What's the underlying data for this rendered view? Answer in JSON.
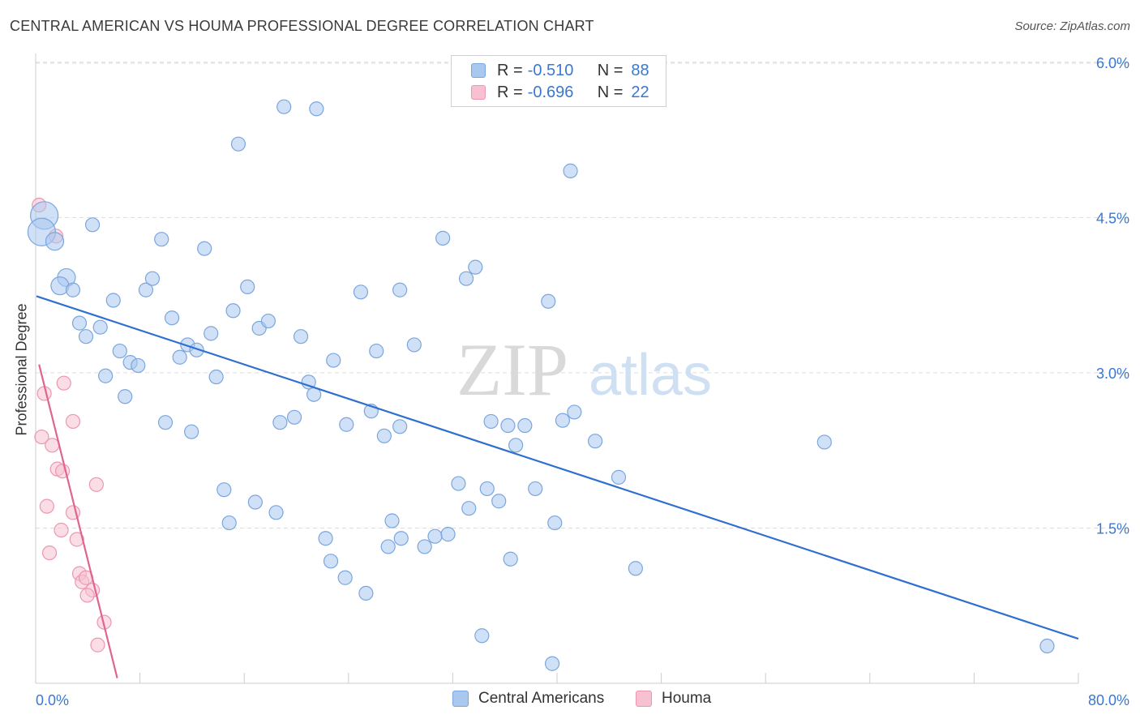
{
  "title": "CENTRAL AMERICAN VS HOUMA PROFESSIONAL DEGREE CORRELATION CHART",
  "source": "Source: ZipAtlas.com",
  "watermark": {
    "zip": "ZIP",
    "atlas": "atlas"
  },
  "legend": {
    "rows": [
      {
        "r_label": "R =",
        "r_value": "-0.510",
        "n_label": "N =",
        "n_value": "88"
      },
      {
        "r_label": "R =",
        "r_value": "-0.696",
        "n_label": "N =",
        "n_value": "22"
      }
    ]
  },
  "bottom_legend": [
    "Central Americans",
    "Houma"
  ],
  "colors": {
    "blue_fill": "#a9c8f0",
    "blue_stroke": "#7aa6de",
    "blue_line": "#2f6fcf",
    "pink_fill": "#f7c1d1",
    "pink_stroke": "#ec97b2",
    "pink_line": "#e0648f",
    "tick_label": "#3a78d0",
    "grid": "#dddddd"
  },
  "chart_data": {
    "type": "scatter",
    "title": "CENTRAL AMERICAN VS HOUMA PROFESSIONAL DEGREE CORRELATION CHART",
    "xlabel": "",
    "ylabel": "Professional Degree",
    "xlim": [
      0,
      80
    ],
    "ylim": [
      0,
      6.3
    ],
    "x_tick_labels": [
      {
        "value": 0,
        "label": "0.0%"
      },
      {
        "value": 80,
        "label": "80.0%"
      }
    ],
    "y_tick_labels": [
      {
        "value": 1.5,
        "label": "1.5%"
      },
      {
        "value": 3.0,
        "label": "3.0%"
      },
      {
        "value": 4.5,
        "label": "4.5%"
      },
      {
        "value": 6.0,
        "label": "6.0%"
      }
    ],
    "grid": true,
    "legend_position": "top-center",
    "series": [
      {
        "name": "Central Americans",
        "r": -0.51,
        "n": 88,
        "trend": {
          "x": [
            0,
            80
          ],
          "y": [
            3.74,
            0.43
          ]
        },
        "points": [
          {
            "x": 0.6,
            "y": 4.52,
            "s": 3
          },
          {
            "x": 0.4,
            "y": 4.36,
            "s": 3
          },
          {
            "x": 1.4,
            "y": 4.27,
            "s": 2
          },
          {
            "x": 2.3,
            "y": 3.92,
            "s": 2
          },
          {
            "x": 1.8,
            "y": 3.84,
            "s": 2
          },
          {
            "x": 2.8,
            "y": 3.8,
            "s": 1
          },
          {
            "x": 4.3,
            "y": 4.43,
            "s": 1
          },
          {
            "x": 3.3,
            "y": 3.48,
            "s": 1
          },
          {
            "x": 3.8,
            "y": 3.35,
            "s": 1
          },
          {
            "x": 4.9,
            "y": 3.44,
            "s": 1
          },
          {
            "x": 5.9,
            "y": 3.7,
            "s": 1
          },
          {
            "x": 6.4,
            "y": 3.21,
            "s": 1
          },
          {
            "x": 7.2,
            "y": 3.1,
            "s": 1
          },
          {
            "x": 7.8,
            "y": 3.07,
            "s": 1
          },
          {
            "x": 5.3,
            "y": 2.97,
            "s": 1
          },
          {
            "x": 6.8,
            "y": 2.77,
            "s": 1
          },
          {
            "x": 8.4,
            "y": 3.8,
            "s": 1
          },
          {
            "x": 8.9,
            "y": 3.91,
            "s": 1
          },
          {
            "x": 9.6,
            "y": 4.29,
            "s": 1
          },
          {
            "x": 10.4,
            "y": 3.53,
            "s": 1
          },
          {
            "x": 11.6,
            "y": 3.27,
            "s": 1
          },
          {
            "x": 11.0,
            "y": 3.15,
            "s": 1
          },
          {
            "x": 12.3,
            "y": 3.22,
            "s": 1
          },
          {
            "x": 12.9,
            "y": 4.2,
            "s": 1
          },
          {
            "x": 13.4,
            "y": 3.38,
            "s": 1
          },
          {
            "x": 13.8,
            "y": 2.96,
            "s": 1
          },
          {
            "x": 9.9,
            "y": 2.52,
            "s": 1
          },
          {
            "x": 11.9,
            "y": 2.43,
            "s": 1
          },
          {
            "x": 15.5,
            "y": 5.21,
            "s": 1
          },
          {
            "x": 15.1,
            "y": 3.6,
            "s": 1
          },
          {
            "x": 16.2,
            "y": 3.83,
            "s": 1
          },
          {
            "x": 17.1,
            "y": 3.43,
            "s": 1
          },
          {
            "x": 17.8,
            "y": 3.5,
            "s": 1
          },
          {
            "x": 19.0,
            "y": 5.57,
            "s": 1
          },
          {
            "x": 21.5,
            "y": 5.55,
            "s": 1
          },
          {
            "x": 20.3,
            "y": 3.35,
            "s": 1
          },
          {
            "x": 20.9,
            "y": 2.91,
            "s": 1
          },
          {
            "x": 21.3,
            "y": 2.79,
            "s": 1
          },
          {
            "x": 18.7,
            "y": 2.52,
            "s": 1
          },
          {
            "x": 19.8,
            "y": 2.57,
            "s": 1
          },
          {
            "x": 14.4,
            "y": 1.87,
            "s": 1
          },
          {
            "x": 14.8,
            "y": 1.55,
            "s": 1
          },
          {
            "x": 16.8,
            "y": 1.75,
            "s": 1
          },
          {
            "x": 18.4,
            "y": 1.65,
            "s": 1
          },
          {
            "x": 22.8,
            "y": 3.12,
            "s": 1
          },
          {
            "x": 24.9,
            "y": 3.78,
            "s": 1
          },
          {
            "x": 26.1,
            "y": 3.21,
            "s": 1
          },
          {
            "x": 27.9,
            "y": 3.8,
            "s": 1
          },
          {
            "x": 29.0,
            "y": 3.27,
            "s": 1
          },
          {
            "x": 23.8,
            "y": 2.5,
            "s": 1
          },
          {
            "x": 25.7,
            "y": 2.63,
            "s": 1
          },
          {
            "x": 26.7,
            "y": 2.39,
            "s": 1
          },
          {
            "x": 27.9,
            "y": 2.48,
            "s": 1
          },
          {
            "x": 31.2,
            "y": 4.3,
            "s": 1
          },
          {
            "x": 33.0,
            "y": 3.91,
            "s": 1
          },
          {
            "x": 33.7,
            "y": 4.02,
            "s": 1
          },
          {
            "x": 22.2,
            "y": 1.4,
            "s": 1
          },
          {
            "x": 22.6,
            "y": 1.18,
            "s": 1
          },
          {
            "x": 23.7,
            "y": 1.02,
            "s": 1
          },
          {
            "x": 25.3,
            "y": 0.87,
            "s": 1
          },
          {
            "x": 27.0,
            "y": 1.32,
            "s": 1
          },
          {
            "x": 27.3,
            "y": 1.57,
            "s": 1
          },
          {
            "x": 28.0,
            "y": 1.4,
            "s": 1
          },
          {
            "x": 29.8,
            "y": 1.32,
            "s": 1
          },
          {
            "x": 30.6,
            "y": 1.42,
            "s": 1
          },
          {
            "x": 31.6,
            "y": 1.44,
            "s": 1
          },
          {
            "x": 32.4,
            "y": 1.93,
            "s": 1
          },
          {
            "x": 34.9,
            "y": 2.53,
            "s": 1
          },
          {
            "x": 36.2,
            "y": 2.49,
            "s": 1
          },
          {
            "x": 36.8,
            "y": 2.3,
            "s": 1
          },
          {
            "x": 37.5,
            "y": 2.49,
            "s": 1
          },
          {
            "x": 33.2,
            "y": 1.69,
            "s": 1
          },
          {
            "x": 34.6,
            "y": 1.88,
            "s": 1
          },
          {
            "x": 35.5,
            "y": 1.76,
            "s": 1
          },
          {
            "x": 36.4,
            "y": 1.2,
            "s": 1
          },
          {
            "x": 38.3,
            "y": 1.88,
            "s": 1
          },
          {
            "x": 39.3,
            "y": 3.69,
            "s": 1
          },
          {
            "x": 40.4,
            "y": 2.54,
            "s": 1
          },
          {
            "x": 41.3,
            "y": 2.62,
            "s": 1
          },
          {
            "x": 42.9,
            "y": 2.34,
            "s": 1
          },
          {
            "x": 39.8,
            "y": 1.55,
            "s": 1
          },
          {
            "x": 41.0,
            "y": 4.95,
            "s": 1
          },
          {
            "x": 44.7,
            "y": 1.99,
            "s": 1
          },
          {
            "x": 46.0,
            "y": 1.11,
            "s": 1
          },
          {
            "x": 34.2,
            "y": 0.46,
            "s": 1
          },
          {
            "x": 39.6,
            "y": 0.19,
            "s": 1
          },
          {
            "x": 60.5,
            "y": 2.33,
            "s": 1
          },
          {
            "x": 77.6,
            "y": 0.36,
            "s": 1
          }
        ]
      },
      {
        "name": "Houma",
        "r": -0.696,
        "n": 22,
        "trend": {
          "x": [
            0.2,
            6.2
          ],
          "y": [
            3.08,
            0.05
          ]
        },
        "points": [
          {
            "x": 0.2,
            "y": 4.62,
            "s": 1
          },
          {
            "x": 1.5,
            "y": 4.32,
            "s": 1
          },
          {
            "x": 0.6,
            "y": 2.8,
            "s": 1
          },
          {
            "x": 2.1,
            "y": 2.9,
            "s": 1
          },
          {
            "x": 2.8,
            "y": 2.53,
            "s": 1
          },
          {
            "x": 0.4,
            "y": 2.38,
            "s": 1
          },
          {
            "x": 1.2,
            "y": 2.3,
            "s": 1
          },
          {
            "x": 1.6,
            "y": 2.07,
            "s": 1
          },
          {
            "x": 2.0,
            "y": 2.05,
            "s": 1
          },
          {
            "x": 4.6,
            "y": 1.92,
            "s": 1
          },
          {
            "x": 0.8,
            "y": 1.71,
            "s": 1
          },
          {
            "x": 2.8,
            "y": 1.65,
            "s": 1
          },
          {
            "x": 1.9,
            "y": 1.48,
            "s": 1
          },
          {
            "x": 3.1,
            "y": 1.39,
            "s": 1
          },
          {
            "x": 1.0,
            "y": 1.26,
            "s": 1
          },
          {
            "x": 3.3,
            "y": 1.06,
            "s": 1
          },
          {
            "x": 3.5,
            "y": 0.98,
            "s": 1
          },
          {
            "x": 3.8,
            "y": 1.02,
            "s": 1
          },
          {
            "x": 4.3,
            "y": 0.9,
            "s": 1
          },
          {
            "x": 3.9,
            "y": 0.85,
            "s": 1
          },
          {
            "x": 5.2,
            "y": 0.59,
            "s": 1
          },
          {
            "x": 4.7,
            "y": 0.37,
            "s": 1
          }
        ]
      }
    ]
  }
}
